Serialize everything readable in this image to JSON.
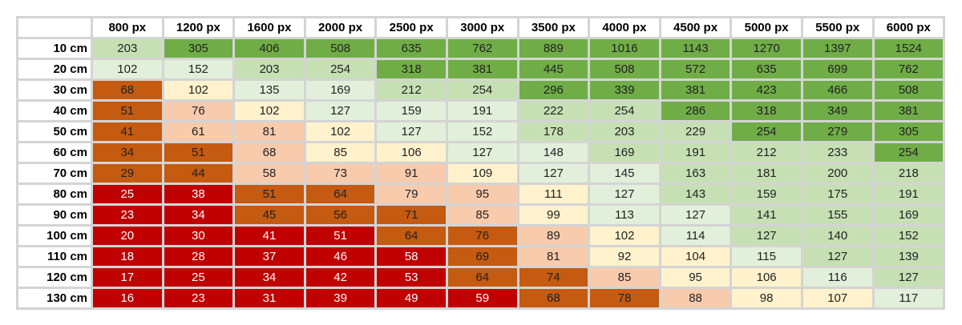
{
  "chart_data": {
    "type": "heatmap",
    "title": "",
    "columns": [
      "800 px",
      "1200 px",
      "1600 px",
      "2000 px",
      "2500 px",
      "3000 px",
      "3500 px",
      "4000 px",
      "4500 px",
      "5000 px",
      "5500 px",
      "6000 px"
    ],
    "rows": [
      "10 cm",
      "20 cm",
      "30 cm",
      "40 cm",
      "50 cm",
      "60 cm",
      "70 cm",
      "80 cm",
      "90 cm",
      "100 cm",
      "110 cm",
      "120 cm",
      "130 cm"
    ],
    "values": [
      [
        203,
        305,
        406,
        508,
        635,
        762,
        889,
        1016,
        1143,
        1270,
        1397,
        1524
      ],
      [
        102,
        152,
        203,
        254,
        318,
        381,
        445,
        508,
        572,
        635,
        699,
        762
      ],
      [
        68,
        102,
        135,
        169,
        212,
        254,
        296,
        339,
        381,
        423,
        466,
        508
      ],
      [
        51,
        76,
        102,
        127,
        159,
        191,
        222,
        254,
        286,
        318,
        349,
        381
      ],
      [
        41,
        61,
        81,
        102,
        127,
        152,
        178,
        203,
        229,
        254,
        279,
        305
      ],
      [
        34,
        51,
        68,
        85,
        106,
        127,
        148,
        169,
        191,
        212,
        233,
        254
      ],
      [
        29,
        44,
        58,
        73,
        91,
        109,
        127,
        145,
        163,
        181,
        200,
        218
      ],
      [
        25,
        38,
        51,
        64,
        79,
        95,
        111,
        127,
        143,
        159,
        175,
        191
      ],
      [
        23,
        34,
        45,
        56,
        71,
        85,
        99,
        113,
        127,
        141,
        155,
        169
      ],
      [
        20,
        30,
        41,
        51,
        64,
        76,
        89,
        102,
        114,
        127,
        140,
        152
      ],
      [
        18,
        28,
        37,
        46,
        58,
        69,
        81,
        92,
        104,
        115,
        127,
        139
      ],
      [
        17,
        25,
        34,
        42,
        53,
        64,
        74,
        85,
        95,
        106,
        116,
        127
      ],
      [
        16,
        23,
        31,
        39,
        49,
        59,
        68,
        78,
        88,
        98,
        107,
        117
      ]
    ],
    "color_levels": [
      [
        5,
        6,
        6,
        6,
        6,
        6,
        6,
        6,
        6,
        6,
        6,
        6
      ],
      [
        4,
        4,
        5,
        5,
        6,
        6,
        6,
        6,
        6,
        6,
        6,
        6
      ],
      [
        1,
        3,
        4,
        4,
        5,
        5,
        6,
        6,
        6,
        6,
        6,
        6
      ],
      [
        1,
        2,
        3,
        4,
        4,
        4,
        5,
        5,
        6,
        6,
        6,
        6
      ],
      [
        1,
        2,
        2,
        3,
        4,
        4,
        5,
        5,
        5,
        6,
        6,
        6
      ],
      [
        1,
        1,
        2,
        3,
        3,
        4,
        4,
        5,
        5,
        5,
        5,
        6
      ],
      [
        1,
        1,
        2,
        2,
        2,
        3,
        4,
        4,
        5,
        5,
        5,
        5
      ],
      [
        0,
        0,
        1,
        1,
        2,
        2,
        3,
        4,
        5,
        5,
        5,
        5
      ],
      [
        0,
        0,
        1,
        1,
        1,
        2,
        3,
        4,
        4,
        5,
        5,
        5
      ],
      [
        0,
        0,
        0,
        0,
        1,
        1,
        2,
        3,
        4,
        5,
        5,
        5
      ],
      [
        0,
        0,
        0,
        0,
        0,
        1,
        2,
        3,
        3,
        4,
        5,
        5
      ],
      [
        0,
        0,
        0,
        0,
        0,
        1,
        1,
        2,
        3,
        3,
        4,
        5
      ],
      [
        0,
        0,
        0,
        0,
        0,
        0,
        1,
        1,
        2,
        3,
        3,
        4
      ]
    ],
    "palette": [
      "#c00000",
      "#c55a11",
      "#f8cbad",
      "#fff2cc",
      "#e2efda",
      "#c6e0b4",
      "#70ad47"
    ]
  }
}
